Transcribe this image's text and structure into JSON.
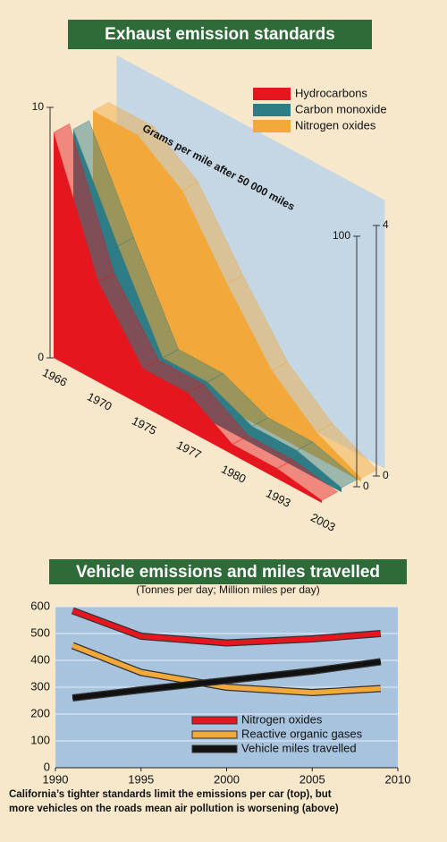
{
  "chart_data": [
    {
      "type": "area3d",
      "title": "Exhaust emission standards",
      "annotation": "Grams per mile after 50 000 miles",
      "categories": [
        "1966",
        "1970",
        "1975",
        "1977",
        "1980",
        "1993",
        "2003"
      ],
      "series": [
        {
          "name": "Hydrocarbons",
          "color": "#e5161d",
          "axis": "y",
          "values": [
            9,
            4,
            1.5,
            1.5,
            0.41,
            0.41,
            0.1
          ]
        },
        {
          "name": "Carbon monoxide",
          "color": "#2d7c86",
          "axis": "y2",
          "values": [
            87,
            50,
            15,
            15,
            7,
            7,
            1.7
          ]
        },
        {
          "name": "Nitrogen oxides",
          "color": "#f2a93a",
          "axis": "y3",
          "values": [
            3.6,
            3.6,
            3.1,
            2,
            1,
            0.4,
            0.05
          ]
        }
      ],
      "ylim": [
        0,
        10
      ],
      "yticks": [
        0,
        10
      ],
      "y2lim": [
        0,
        100
      ],
      "y2ticks": [
        0,
        100
      ],
      "y3lim": [
        0,
        4
      ],
      "y3ticks": [
        0,
        4
      ]
    },
    {
      "type": "line",
      "title": "Vehicle emissions and miles travelled",
      "subtitle": "(Tonnes per day; Million miles per day)",
      "x": [
        1991,
        1995,
        2000,
        2005,
        2009
      ],
      "series": [
        {
          "name": "Nitrogen oxides",
          "color": "#e5161d",
          "values": [
            585,
            490,
            465,
            480,
            500
          ]
        },
        {
          "name": "Reactive organic gases",
          "color": "#f2a93a",
          "values": [
            455,
            355,
            300,
            280,
            295
          ]
        },
        {
          "name": "Vehicle miles travelled",
          "color": "#111111",
          "values": [
            260,
            290,
            325,
            360,
            395
          ]
        }
      ],
      "xlim": [
        1990,
        2010
      ],
      "xticks": [
        1990,
        1995,
        2000,
        2005,
        2010
      ],
      "ylim": [
        0,
        600
      ],
      "yticks": [
        0,
        100,
        200,
        300,
        400,
        500,
        600
      ],
      "grid": true,
      "legend": "bottom"
    }
  ],
  "caption": [
    "California’s tighter standards limit the emissions per car (top), but",
    "more vehicles on the roads mean air pollution is worsening (above)"
  ]
}
